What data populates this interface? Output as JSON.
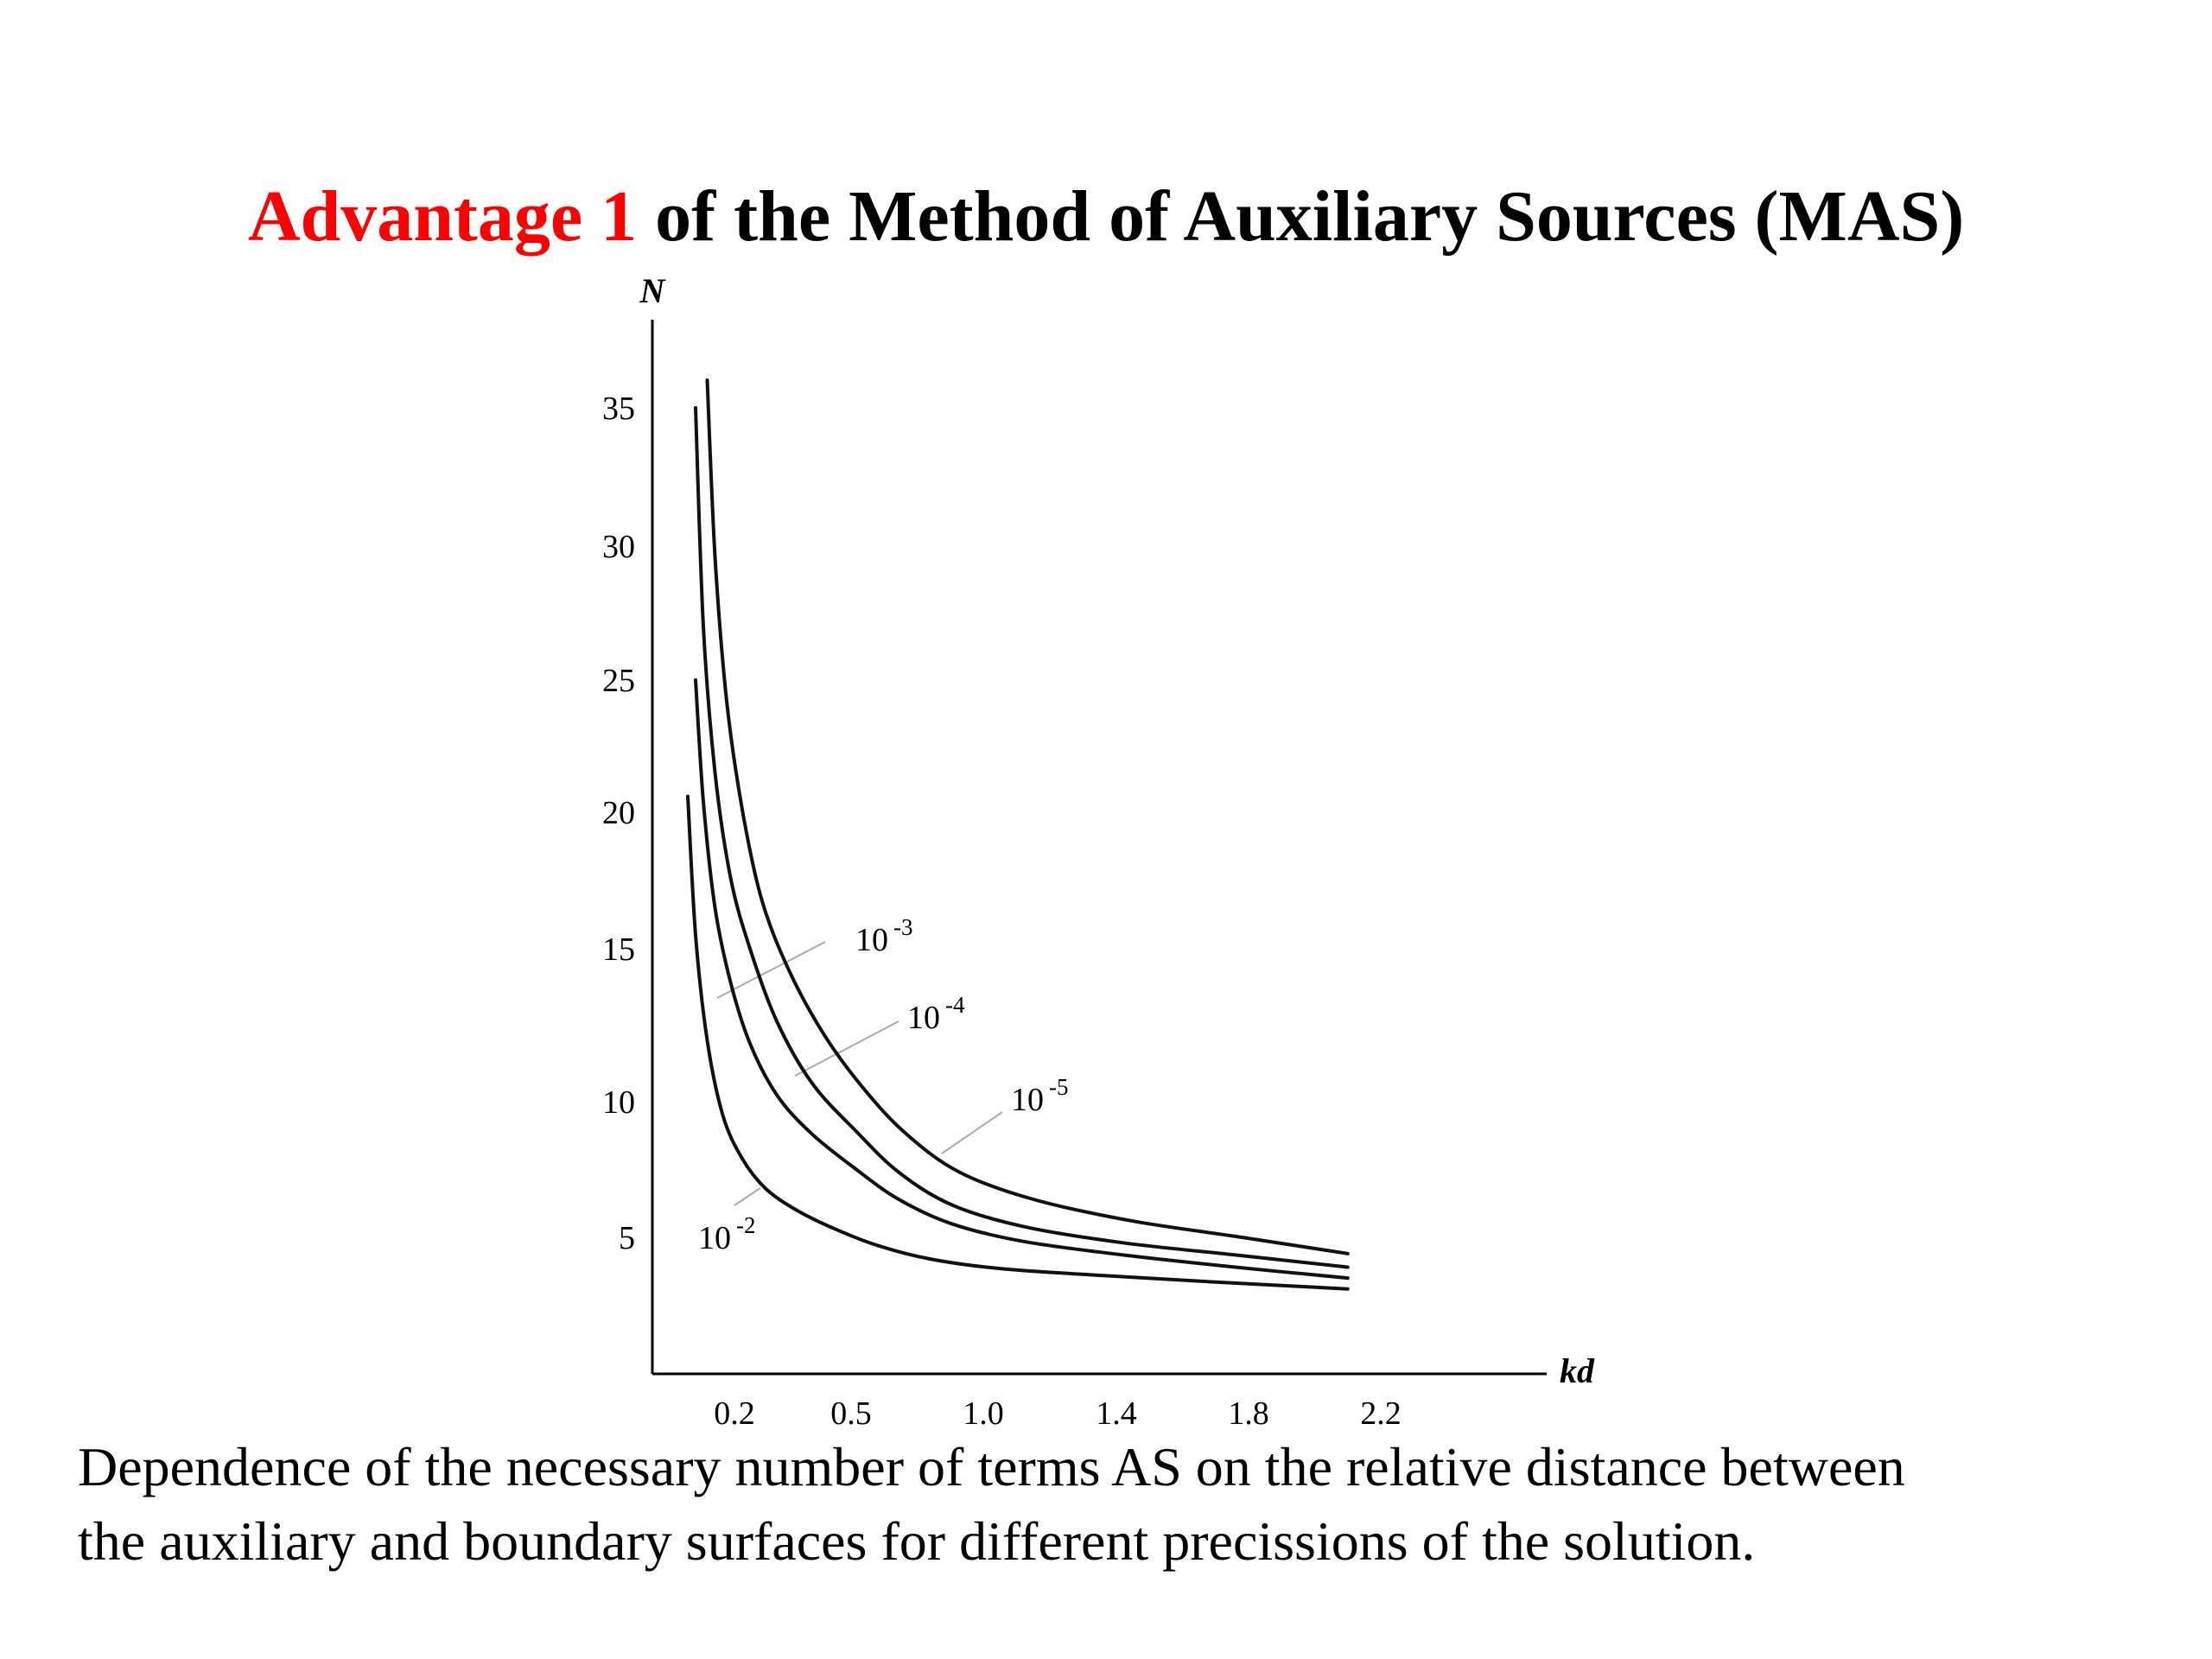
{
  "slide": {
    "title_highlight": "Advantage 1",
    "title_rest": " of the Method of Auxiliary Sources (MAS)",
    "title_highlight_color": "#ff0000",
    "caption_line1": "Dependence of the necessary number of terms AS on the relative distance between",
    "caption_line2": "the auxiliary and boundary surfaces for different precissions of the solution."
  },
  "chart_data": {
    "type": "line",
    "title": "",
    "xlabel": "kd",
    "ylabel": "N",
    "grid": false,
    "legend": "none",
    "xlim": [
      0,
      2.6
    ],
    "ylim": [
      0,
      38
    ],
    "x_ticks": [
      "0.2",
      "0.5",
      "1.0",
      "1.4",
      "1.8",
      "2.2"
    ],
    "y_ticks": [
      "5",
      "10",
      "15",
      "20",
      "25",
      "30",
      "35"
    ],
    "series": [
      {
        "name": "10^-2",
        "label_base": "10",
        "label_exp": "-2",
        "x": [
          0.08,
          0.1,
          0.13,
          0.17,
          0.22,
          0.28,
          0.36,
          0.46,
          0.6,
          0.8,
          1.05,
          1.35,
          1.7,
          2.1
        ],
        "values": [
          20.6,
          15.5,
          12.0,
          9.5,
          7.9,
          6.8,
          6.0,
          5.3,
          4.7,
          4.2,
          3.85,
          3.6,
          3.35,
          3.1
        ]
      },
      {
        "name": "10^-3",
        "label_base": "10",
        "label_exp": "-3",
        "x": [
          0.1,
          0.12,
          0.15,
          0.19,
          0.24,
          0.31,
          0.4,
          0.52,
          0.68,
          0.88,
          1.12,
          1.42,
          1.76,
          2.1
        ],
        "values": [
          25.0,
          20.4,
          16.5,
          13.9,
          11.9,
          10.2,
          8.8,
          7.5,
          6.4,
          5.5,
          4.85,
          4.35,
          3.9,
          3.5
        ]
      },
      {
        "name": "10^-4",
        "label_base": "10",
        "label_exp": "-4",
        "x": [
          0.1,
          0.12,
          0.15,
          0.19,
          0.24,
          0.31,
          0.4,
          0.52,
          0.68,
          0.88,
          1.12,
          1.42,
          1.76,
          2.1
        ],
        "values": [
          35.0,
          27.0,
          21.5,
          17.6,
          15.0,
          12.6,
          10.6,
          8.9,
          7.4,
          6.2,
          5.4,
          4.8,
          4.35,
          3.9
        ]
      },
      {
        "name": "10^-5",
        "label_base": "10",
        "label_exp": "-5",
        "x": [
          0.13,
          0.15,
          0.18,
          0.22,
          0.27,
          0.34,
          0.43,
          0.55,
          0.71,
          0.91,
          1.15,
          1.45,
          1.78,
          2.1
        ],
        "values": [
          36.0,
          29.6,
          24.2,
          20.1,
          16.8,
          14.3,
          12.2,
          10.4,
          8.8,
          7.4,
          6.4,
          5.6,
          5.0,
          4.4
        ]
      }
    ]
  }
}
